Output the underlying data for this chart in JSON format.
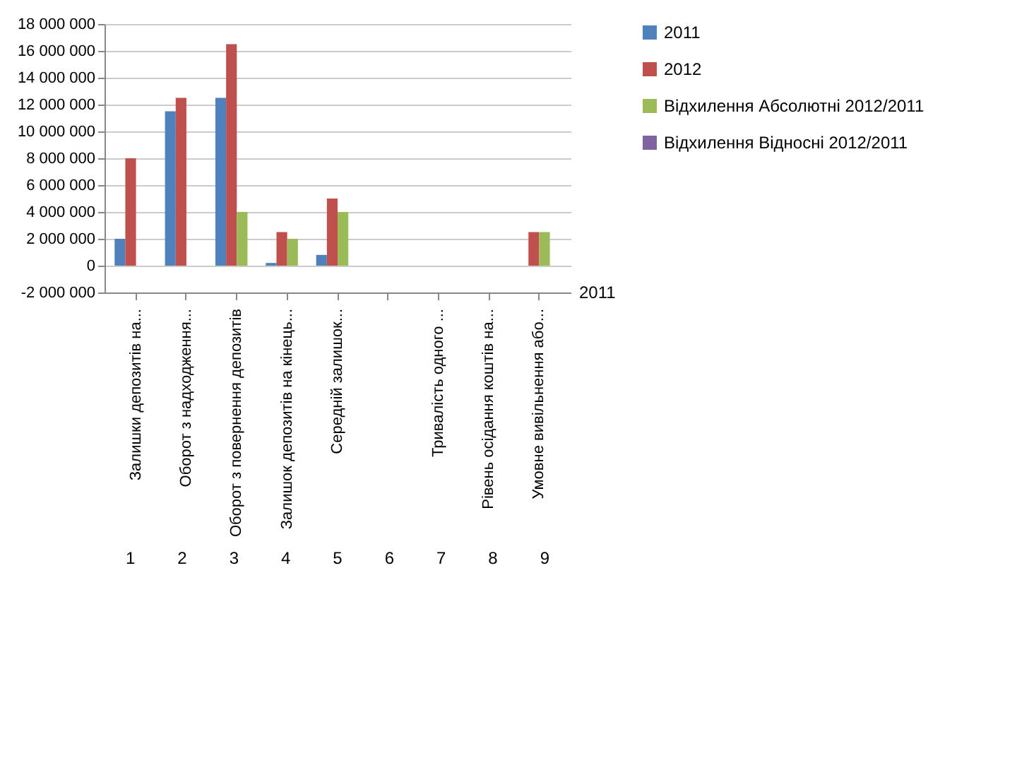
{
  "chart_data": {
    "type": "bar",
    "categories": [
      "Залишки депозитів на...",
      "Оборот з надходження...",
      "Оборот з повернення депозитів",
      "Залишок депозитів на кінець...",
      "Середній залишок...",
      null,
      "Тривалість одного ...",
      "Рівень осідання коштів на...",
      "Умовне вивільнення або..."
    ],
    "series": [
      {
        "name": "2011",
        "color": "#4f81bd",
        "values": [
          2000000,
          11500000,
          12500000,
          200000,
          800000,
          0,
          0,
          0,
          0
        ]
      },
      {
        "name": "2012",
        "color": "#c0504d",
        "values": [
          8000000,
          12500000,
          16500000,
          2500000,
          5000000,
          0,
          0,
          0,
          2500000
        ]
      },
      {
        "name": "Відхилення Абсолютні 2012/2011",
        "color": "#9bbb59",
        "values": [
          null,
          null,
          4000000,
          2000000,
          4000000,
          0,
          0,
          0,
          2500000
        ]
      },
      {
        "name": "Відхилення Відносні 2012/2011",
        "color": "#8064a2",
        "values": [
          0,
          0,
          0,
          0,
          0,
          0,
          0,
          0,
          0
        ]
      }
    ],
    "ylim": [
      -2000000,
      18000000
    ],
    "yticks": [
      {
        "value": -2000000,
        "label": "-2 000 000"
      },
      {
        "value": 0,
        "label": "0"
      },
      {
        "value": 2000000,
        "label": "2 000 000"
      },
      {
        "value": 4000000,
        "label": "4 000 000"
      },
      {
        "value": 6000000,
        "label": "6 000 000"
      },
      {
        "value": 8000000,
        "label": "8 000 000"
      },
      {
        "value": 10000000,
        "label": "10 000 000"
      },
      {
        "value": 12000000,
        "label": "12 000 000"
      },
      {
        "value": 14000000,
        "label": "14 000 000"
      },
      {
        "value": 16000000,
        "label": "16 000 000"
      },
      {
        "value": 18000000,
        "label": "18 000 000"
      }
    ],
    "grid": "y",
    "legend": "right",
    "annotations": [
      "2011",
      "1",
      "2",
      "3",
      "4",
      "5",
      "6",
      "7",
      "8",
      "9"
    ]
  }
}
